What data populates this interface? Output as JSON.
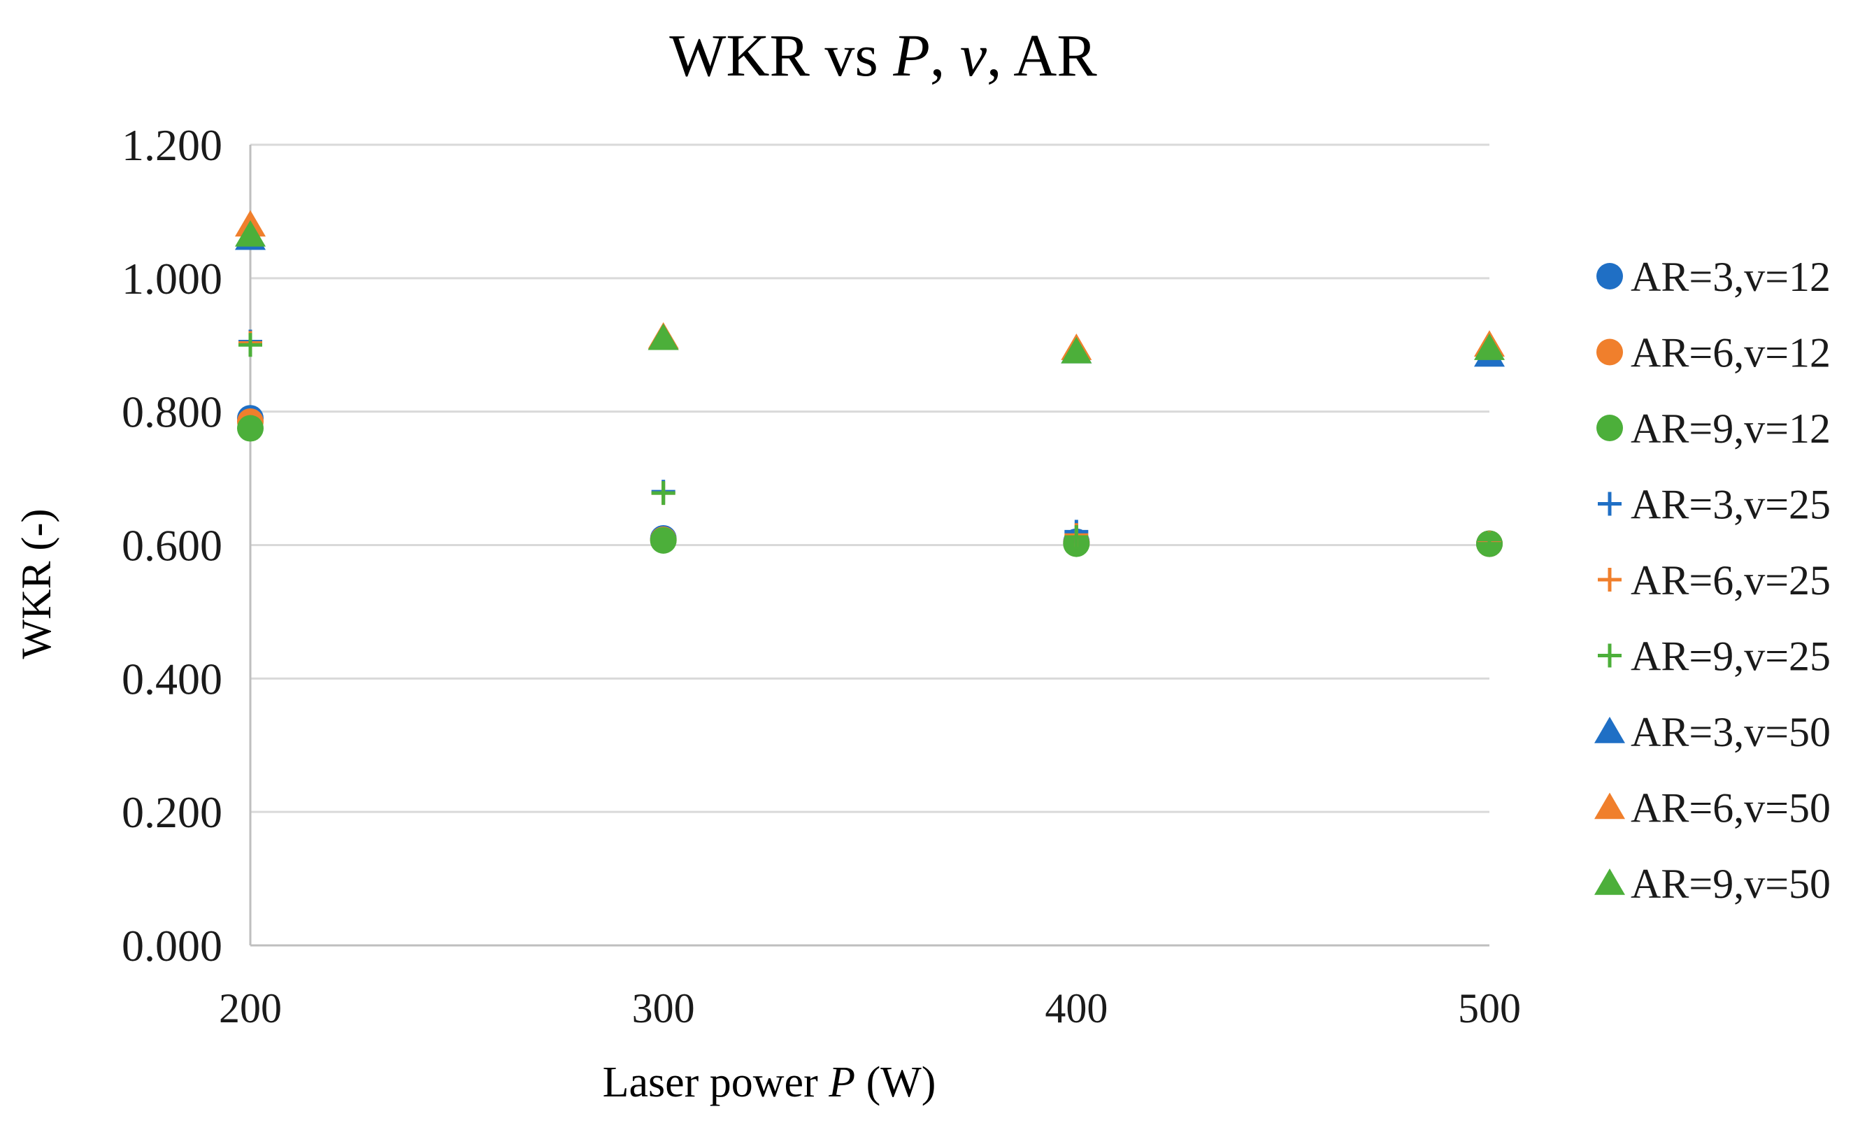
{
  "chart_data": {
    "type": "scatter",
    "title": {
      "prefix": "WKR vs ",
      "p": "P",
      "sep1": ", ",
      "v": "v",
      "sep2": ", AR"
    },
    "xlabel": {
      "prefix": "Laser power ",
      "p": "P",
      "suffix": " (W)"
    },
    "ylabel": "WKR (-)",
    "xlim": [
      200,
      500
    ],
    "ylim": [
      0,
      1.2
    ],
    "x_ticks": [
      "200",
      "300",
      "400",
      "500"
    ],
    "y_ticks": [
      "0.000",
      "0.200",
      "0.400",
      "0.600",
      "0.800",
      "1.000",
      "1.200"
    ],
    "grid": "horizontal",
    "legend_position": "right",
    "colors": {
      "blue": "#1f6fc5",
      "orange": "#f07f2c",
      "green": "#4caf3a",
      "grid": "#d9d9d9",
      "axis": "#bfbfbf"
    },
    "series": [
      {
        "name": "AR=3,v=12",
        "marker": "circle",
        "color": "blue",
        "x": [
          200,
          300,
          400,
          500
        ],
        "y": [
          0.79,
          0.61,
          0.605,
          0.602
        ]
      },
      {
        "name": "AR=6,v=12",
        "marker": "circle",
        "color": "orange",
        "x": [
          200,
          300,
          400,
          500
        ],
        "y": [
          0.785,
          0.608,
          0.603,
          0.602
        ]
      },
      {
        "name": "AR=9,v=12",
        "marker": "circle",
        "color": "green",
        "x": [
          200,
          300,
          400,
          500
        ],
        "y": [
          0.775,
          0.607,
          0.602,
          0.602
        ]
      },
      {
        "name": "AR=3,v=25",
        "marker": "plus",
        "color": "blue",
        "x": [
          200,
          300,
          400,
          500
        ],
        "y": [
          0.905,
          0.68,
          0.62,
          0.603
        ]
      },
      {
        "name": "AR=6,v=25",
        "marker": "plus",
        "color": "orange",
        "x": [
          200,
          300,
          400,
          500
        ],
        "y": [
          0.903,
          0.678,
          0.615,
          0.603
        ]
      },
      {
        "name": "AR=9,v=25",
        "marker": "plus",
        "color": "green",
        "x": [
          200,
          300,
          400,
          500
        ],
        "y": [
          0.9,
          0.678,
          0.612,
          0.602
        ]
      },
      {
        "name": "AR=3,v=50",
        "marker": "triangle",
        "color": "blue",
        "x": [
          200,
          300,
          400,
          500
        ],
        "y": [
          1.06,
          0.91,
          0.89,
          0.885
        ]
      },
      {
        "name": "AR=6,v=50",
        "marker": "triangle",
        "color": "orange",
        "x": [
          200,
          300,
          400,
          500
        ],
        "y": [
          1.08,
          0.912,
          0.895,
          0.9
        ]
      },
      {
        "name": "AR=9,v=50",
        "marker": "triangle",
        "color": "green",
        "x": [
          200,
          300,
          400,
          500
        ],
        "y": [
          1.065,
          0.91,
          0.89,
          0.895
        ]
      }
    ]
  }
}
